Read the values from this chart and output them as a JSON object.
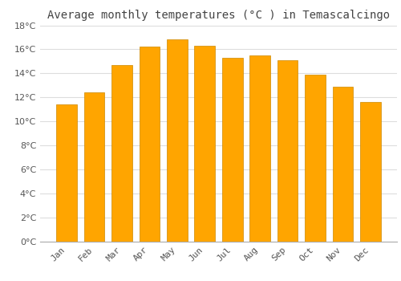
{
  "title": "Average monthly temperatures (°C ) in Temascalcingo",
  "months": [
    "Jan",
    "Feb",
    "Mar",
    "Apr",
    "May",
    "Jun",
    "Jul",
    "Aug",
    "Sep",
    "Oct",
    "Nov",
    "Dec"
  ],
  "values": [
    11.4,
    12.4,
    14.7,
    16.2,
    16.8,
    16.3,
    15.3,
    15.5,
    15.1,
    13.9,
    12.9,
    11.6
  ],
  "bar_color": "#FFA500",
  "bar_edge_color": "#CC8800",
  "ylim": [
    0,
    18
  ],
  "yticks": [
    0,
    2,
    4,
    6,
    8,
    10,
    12,
    14,
    16,
    18
  ],
  "background_color": "#ffffff",
  "grid_color": "#dddddd",
  "title_fontsize": 10,
  "tick_fontsize": 8,
  "bar_width": 0.75
}
